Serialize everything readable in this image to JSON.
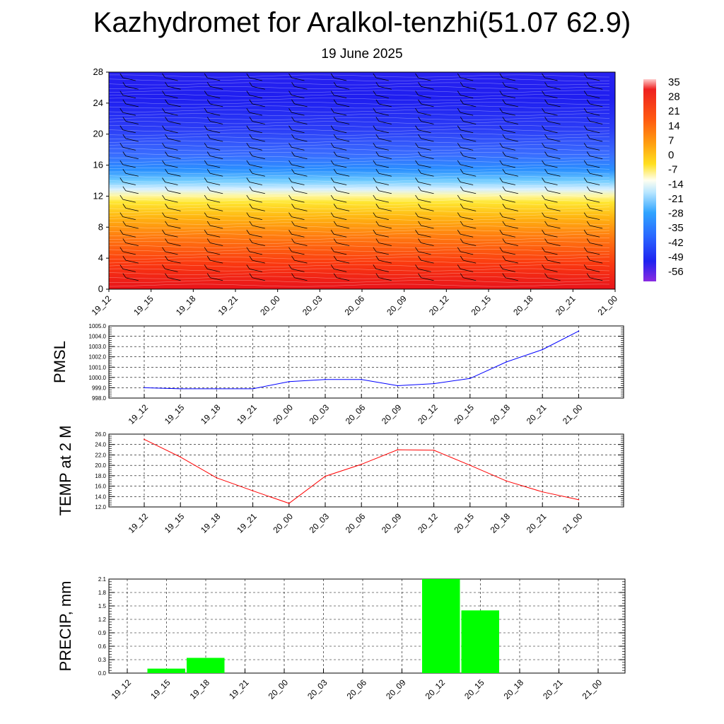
{
  "title": "Kazhydromet for Aralkol-tenzhi(51.07 62.9)",
  "subtitle": "19 June 2025",
  "time_labels": [
    "19_12",
    "19_15",
    "19_18",
    "19_21",
    "20_00",
    "20_03",
    "20_06",
    "20_09",
    "20_12",
    "20_15",
    "20_18",
    "20_21",
    "21_00"
  ],
  "chart_data": [
    {
      "type": "heatmap",
      "name": "temperature-cross-section",
      "x": [
        "19_12",
        "19_15",
        "19_18",
        "19_21",
        "20_00",
        "20_03",
        "20_06",
        "20_09",
        "20_12",
        "20_15",
        "20_18",
        "20_21",
        "21_00"
      ],
      "y_ticks": [
        0,
        4,
        8,
        12,
        16,
        20,
        24,
        28
      ],
      "ylim": [
        0,
        28
      ],
      "colorbar_labels": [
        "35",
        "28",
        "21",
        "14",
        "7",
        "0",
        "-7",
        "-14",
        "-21",
        "-28",
        "-35",
        "-42",
        "-49",
        "-56"
      ],
      "wind_barbs": true,
      "contours": "white"
    },
    {
      "type": "line",
      "ylabel": "PMSL",
      "categories": [
        "19_12",
        "19_15",
        "19_18",
        "19_21",
        "20_00",
        "20_03",
        "20_06",
        "20_09",
        "20_12",
        "20_15",
        "20_18",
        "20_21",
        "21_00"
      ],
      "values": [
        999.0,
        998.9,
        998.9,
        998.9,
        999.6,
        999.8,
        999.8,
        999.2,
        999.4,
        999.9,
        1001.5,
        1002.7,
        1004.5
      ],
      "ylim": [
        998.0,
        1005.0
      ],
      "y_ticks": [
        "998.0",
        "999.0",
        "1000.0",
        "1001.0",
        "1002.0",
        "1003.0",
        "1004.0",
        "1005.0"
      ],
      "color": "#0000ff",
      "grid": true
    },
    {
      "type": "line",
      "ylabel": "TEMP at 2 M",
      "categories": [
        "19_12",
        "19_15",
        "19_18",
        "19_21",
        "20_00",
        "20_03",
        "20_06",
        "20_09",
        "20_12",
        "20_15",
        "20_18",
        "20_21",
        "21_00"
      ],
      "values": [
        25.0,
        21.6,
        17.6,
        15.1,
        12.7,
        17.9,
        20.2,
        23.0,
        22.9,
        20.0,
        17.0,
        14.9,
        13.4
      ],
      "ylim": [
        12.0,
        26.0
      ],
      "y_ticks": [
        "12.0",
        "14.0",
        "16.0",
        "18.0",
        "20.0",
        "22.0",
        "24.0",
        "26.0"
      ],
      "color": "#ff0000",
      "grid": true
    },
    {
      "type": "bar",
      "ylabel": "PRECIP, mm",
      "categories": [
        "19_12",
        "19_15",
        "19_18",
        "19_21",
        "20_00",
        "20_03",
        "20_06",
        "20_09",
        "20_12",
        "20_15",
        "20_18",
        "20_21",
        "21_00"
      ],
      "values": [
        0,
        0.1,
        0.34,
        0,
        0,
        0,
        0,
        0,
        2.1,
        1.4,
        0,
        0,
        0
      ],
      "ylim": [
        0,
        2.1
      ],
      "y_ticks": [
        "0.0",
        "0.3",
        "0.6",
        "0.9",
        "1.2",
        "1.5",
        "1.8",
        "2.1"
      ],
      "color": "#00ff00",
      "grid": true
    }
  ]
}
